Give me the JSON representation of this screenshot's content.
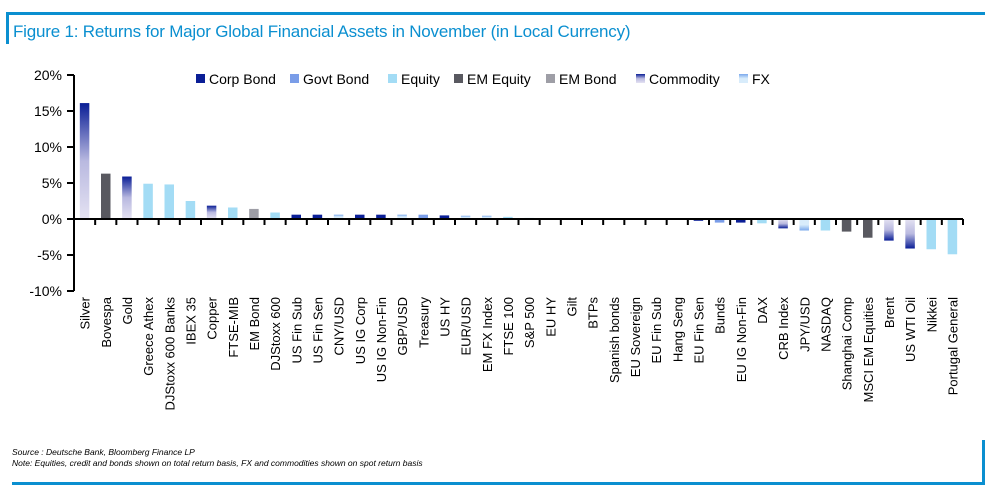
{
  "title": "Figure 1: Returns for Major Global Financial Assets in November (in Local Currency)",
  "source": "Source : Deutsche Bank, Bloomberg Finance LP",
  "note": "Note: Equities, credit and bonds shown on total return basis, FX and commodities shown on spot return basis",
  "chart_data": {
    "type": "bar",
    "title": "Figure 1: Returns for Major Global Financial Assets in November (in Local Currency)",
    "xlabel": "",
    "ylabel": "",
    "ylim": [
      -10,
      20
    ],
    "yticks": [
      "20%",
      "15%",
      "10%",
      "5%",
      "0%",
      "-5%",
      "-10%"
    ],
    "ytick_values": [
      20,
      15,
      10,
      5,
      0,
      -5,
      -10
    ],
    "grid": false,
    "legend_position": "top",
    "legend": [
      {
        "key": "corp",
        "name": "Corp Bond",
        "color": "#0a1e96"
      },
      {
        "key": "govt",
        "name": "Govt Bond",
        "color": "#7a9de8"
      },
      {
        "key": "equity",
        "name": "Equity",
        "color": "#a3dcf5"
      },
      {
        "key": "emeq",
        "name": "EM Equity",
        "color": "#595960"
      },
      {
        "key": "embond",
        "name": "EM Bond",
        "color": "#9e9ea6"
      },
      {
        "key": "commodity",
        "name": "Commodity",
        "color": "#0a1e96",
        "color2": "#e4e2f2"
      },
      {
        "key": "fx",
        "name": "FX",
        "color": "#7aa8ec",
        "color2": "#d8ecfb"
      }
    ],
    "categories": [
      "Silver",
      "Bovespa",
      "Gold",
      "Greece Athex",
      "DJStoxx 600 Banks",
      "IBEX 35",
      "Copper",
      "FTSE-MIB",
      "EM Bond",
      "DJStoxx 600",
      "US Fin Sub",
      "US Fin Sen",
      "CNY/USD",
      "US IG Corp",
      "US IG Non-Fin",
      "GBP/USD",
      "Treasury",
      "US HY",
      "EUR/USD",
      "EM FX Index",
      "FTSE 100",
      "S&P 500",
      "EU HY",
      "Gilt",
      "BTPs",
      "Spanish bonds",
      "EU Sovereign",
      "EU Fin Sub",
      "Hang Seng",
      "EU Fin Sen",
      "Bunds",
      "EU IG Non-Fin",
      "DAX",
      "CRB Index",
      "JPY/USD",
      "NASDAQ",
      "Shanghai Comp",
      "MSCI EM Equities",
      "Brent",
      "US WTI Oil",
      "Nikkei",
      "Portugal General"
    ],
    "asset_class": [
      "commodity",
      "emeq",
      "commodity",
      "equity",
      "equity",
      "equity",
      "commodity",
      "equity",
      "embond",
      "equity",
      "corp",
      "corp",
      "fx",
      "corp",
      "corp",
      "fx",
      "govt",
      "corp",
      "fx",
      "fx",
      "equity",
      "equity",
      "corp",
      "govt",
      "govt",
      "govt",
      "govt",
      "corp",
      "equity",
      "corp",
      "govt",
      "corp",
      "equity",
      "commodity",
      "fx",
      "equity",
      "emeq",
      "emeq",
      "commodity",
      "commodity",
      "equity",
      "equity"
    ],
    "values": [
      16.1,
      6.3,
      5.9,
      4.9,
      4.8,
      2.5,
      1.85,
      1.6,
      1.4,
      0.9,
      0.6,
      0.6,
      0.6,
      0.6,
      0.6,
      0.6,
      0.6,
      0.5,
      0.45,
      0.45,
      0.3,
      0.15,
      0,
      0,
      0,
      0,
      0,
      0,
      0,
      -0.25,
      -0.5,
      -0.5,
      -0.6,
      -1.3,
      -1.6,
      -1.6,
      -1.75,
      -2.6,
      -3.0,
      -4.1,
      -4.2,
      -4.9
    ]
  }
}
